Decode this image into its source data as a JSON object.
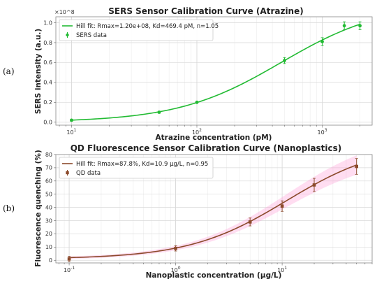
{
  "panel_labels": [
    "(a)",
    "(b)"
  ],
  "chart_data": [
    {
      "type": "scatter",
      "title": "SERS Sensor Calibration Curve (Atrazine)",
      "xlabel": "Atrazine concentration (pM)",
      "ylabel": "SERS intensity (a.u.)",
      "y_multiplier": "×10^8",
      "x_scale": "log",
      "xlim": [
        7.5,
        2500
      ],
      "ylim": [
        -0.03,
        1.06
      ],
      "x_ticks": [
        10,
        100,
        1000
      ],
      "x_tick_labels": [
        "10^1",
        "10^2",
        "10^3"
      ],
      "y_ticks": [
        0.0,
        0.2,
        0.4,
        0.6,
        0.8,
        1.0
      ],
      "y_tick_labels": [
        "0.0",
        "0.2",
        "0.4",
        "0.6",
        "0.8",
        "1.0"
      ],
      "grid": true,
      "legend_position": "top-left",
      "colors": {
        "fit": "#22bb33",
        "data": "#22bb33"
      },
      "series": [
        {
          "name": "Hill fit: Rmax=1.20e+08, Kd=469.4 pM, n=1.05",
          "kind": "fit",
          "Rmax": 1.2,
          "Kd": 469.4,
          "n": 1.05,
          "offset": 0.0
        },
        {
          "name": "SERS data",
          "kind": "points",
          "x": [
            10,
            50,
            100,
            500,
            1000,
            1500,
            2000
          ],
          "y": [
            0.02,
            0.1,
            0.2,
            0.62,
            0.81,
            0.97,
            0.97
          ],
          "err": [
            0.01,
            0.01,
            0.01,
            0.03,
            0.04,
            0.04,
            0.04
          ]
        }
      ]
    },
    {
      "type": "scatter",
      "title": "QD Fluorescence Sensor Calibration Curve (Nanoplastics)",
      "xlabel": "Nanoplastic concentration (μg/L)",
      "ylabel": "Fluorescence quenching (%)",
      "x_scale": "log",
      "xlim": [
        0.075,
        70
      ],
      "ylim": [
        -2,
        80
      ],
      "x_ticks": [
        0.1,
        1,
        10
      ],
      "x_tick_labels": [
        "10^-1",
        "10^0",
        "10^1"
      ],
      "y_ticks": [
        0,
        10,
        20,
        30,
        40,
        50,
        60,
        70,
        80
      ],
      "y_tick_labels": [
        "0",
        "10",
        "20",
        "30",
        "40",
        "50",
        "60",
        "70",
        "80"
      ],
      "grid": true,
      "legend_position": "top-left",
      "colors": {
        "fit": "#8b4a2b",
        "data": "#8b4a2b",
        "band": "#ff9ed8"
      },
      "series": [
        {
          "name": "Hill fit: Rmax=87.8%, Kd=10.9 μg/L, n=0.95",
          "kind": "fit",
          "Rmax": 87.8,
          "Kd": 10.9,
          "n": 0.95,
          "offset": 1.0
        },
        {
          "name": "QD data",
          "kind": "points",
          "x": [
            0.1,
            1,
            5,
            10,
            20,
            50
          ],
          "y": [
            1,
            9,
            29,
            41,
            57,
            71
          ],
          "err": [
            2,
            2,
            3,
            4,
            5,
            6
          ]
        }
      ]
    }
  ]
}
